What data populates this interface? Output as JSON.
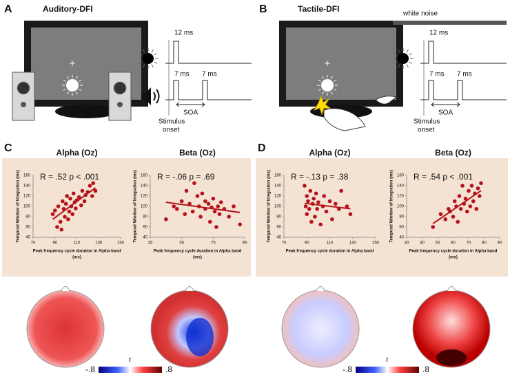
{
  "panels": {
    "a": {
      "letter": "A",
      "title": "Auditory-DFI",
      "pulse_top": "12 ms",
      "pulse_1": "7 ms",
      "pulse_2": "7 ms",
      "soa": "SOA",
      "onset": [
        "Stimulus",
        "onset"
      ]
    },
    "b": {
      "letter": "B",
      "title": "Tactile-DFI",
      "noise": "white noise",
      "pulse_top": "12 ms",
      "pulse_1": "7 ms",
      "pulse_2": "7 ms",
      "soa": "SOA",
      "onset": [
        "Stimulus",
        "onset"
      ]
    },
    "c": {
      "letter": "C"
    },
    "d": {
      "letter": "D"
    }
  },
  "colorbars": [
    {
      "min": "-.8",
      "max": ".8",
      "label": "r"
    },
    {
      "min": "-.8",
      "max": ".8",
      "label": "r"
    }
  ],
  "chart_data": [
    {
      "type": "scatter",
      "title": "Alpha (Oz)",
      "annotation": "R = .52 p < .001",
      "color": "#b5121b",
      "x_label": [
        "Peak frequency cycle duration in Alpha band",
        "(ms)"
      ],
      "y_label": "Temporal Window of Integration (ms)",
      "xlim": [
        70,
        150
      ],
      "xticks": [
        70,
        90,
        110,
        130,
        150
      ],
      "ylim": [
        40,
        160
      ],
      "yticks": [
        40,
        60,
        80,
        100,
        120,
        140,
        160
      ],
      "x": [
        88,
        90,
        92,
        93,
        95,
        96,
        97,
        98,
        99,
        100,
        101,
        102,
        103,
        104,
        105,
        106,
        107,
        108,
        109,
        110,
        112,
        114,
        115,
        117,
        118,
        120,
        122,
        124,
        125,
        127
      ],
      "values": [
        85,
        92,
        60,
        100,
        70,
        55,
        110,
        95,
        80,
        105,
        120,
        75,
        90,
        115,
        100,
        85,
        125,
        108,
        96,
        112,
        118,
        102,
        130,
        110,
        122,
        128,
        140,
        120,
        145,
        130
      ]
    },
    {
      "type": "scatter",
      "title": "Beta (Oz)",
      "annotation": "R = -.06 p = .69",
      "color": "#b5121b",
      "x_label": [
        "Peak frequency cycle duration in Alpha band",
        "(ms)"
      ],
      "y_label": "Temporal Window of Integration (ms)",
      "xlim": [
        35,
        95
      ],
      "xticks": [
        35,
        55,
        75,
        95
      ],
      "ylim": [
        40,
        160
      ],
      "yticks": [
        40,
        60,
        80,
        100,
        120,
        140,
        160
      ],
      "x": [
        45,
        50,
        52,
        55,
        57,
        58,
        60,
        62,
        63,
        65,
        66,
        67,
        68,
        70,
        70,
        72,
        73,
        74,
        75,
        76,
        77,
        78,
        79,
        80,
        82,
        85,
        88,
        92
      ],
      "values": [
        75,
        100,
        95,
        110,
        85,
        130,
        105,
        90,
        145,
        120,
        100,
        80,
        125,
        95,
        110,
        105,
        70,
        98,
        115,
        90,
        60,
        100,
        85,
        108,
        95,
        80,
        100,
        65
      ]
    },
    {
      "type": "scatter",
      "title": "Alpha (Oz)",
      "annotation": "R = -.13 p = .38",
      "color": "#b5121b",
      "x_label": [
        "Peak frequency cycle duration in Alpha band"
      ],
      "y_label": "Temporal Window of Integration (ms)",
      "xlim": [
        70,
        150
      ],
      "xticks": [
        70,
        90,
        110,
        130,
        150
      ],
      "ylim": [
        40,
        160
      ],
      "yticks": [
        40,
        60,
        80,
        100,
        120,
        140,
        160
      ],
      "x": [
        88,
        89,
        90,
        90,
        91,
        92,
        93,
        94,
        95,
        96,
        97,
        98,
        99,
        100,
        102,
        104,
        105,
        107,
        110,
        112,
        115,
        118,
        120,
        125,
        128
      ],
      "values": [
        140,
        100,
        120,
        85,
        110,
        95,
        130,
        70,
        105,
        115,
        80,
        125,
        95,
        108,
        65,
        100,
        120,
        90,
        110,
        75,
        105,
        95,
        130,
        100,
        85
      ]
    },
    {
      "type": "scatter",
      "title": "Beta (Oz)",
      "annotation": "R = .54 p < .001",
      "color": "#b5121b",
      "x_label": [
        "Peak frequency cycle duration in Alpha band",
        "(ms)"
      ],
      "y_label": "Temporal Window of Integration (ms)",
      "xlim": [
        30,
        90
      ],
      "xticks": [
        30,
        40,
        50,
        60,
        70,
        80,
        90
      ],
      "ylim": [
        40,
        160
      ],
      "yticks": [
        40,
        60,
        80,
        100,
        120,
        140,
        160
      ],
      "x": [
        47,
        52,
        55,
        57,
        58,
        60,
        61,
        62,
        63,
        64,
        65,
        66,
        67,
        68,
        69,
        70,
        71,
        72,
        73,
        74,
        75,
        76,
        77,
        78
      ],
      "values": [
        60,
        85,
        75,
        95,
        90,
        80,
        110,
        100,
        70,
        120,
        95,
        140,
        105,
        115,
        90,
        130,
        100,
        140,
        110,
        125,
        95,
        135,
        120,
        145
      ]
    }
  ]
}
